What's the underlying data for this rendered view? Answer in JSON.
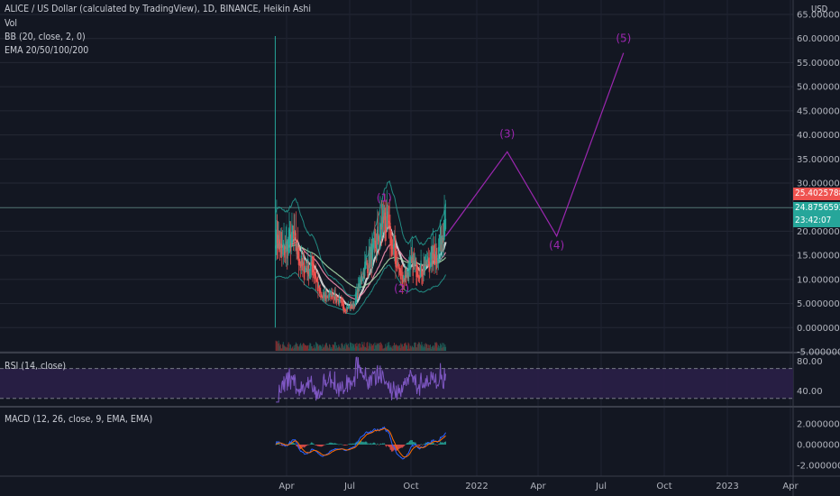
{
  "header": {
    "title": "ALICE / US Dollar (calculated by TradingView), 1D, BINANCE, Heikin Ashi",
    "vol": "Vol",
    "bb": "BB (20, close, 2, 0)",
    "ema": "EMA 20/50/100/200"
  },
  "currency": "USD",
  "price_tags": {
    "last": "25.4025788",
    "current": "24.8756592",
    "countdown": "23:42:07"
  },
  "rsi": {
    "label": "RSI (14, close)",
    "ticks": [
      "80.00",
      "40.00"
    ]
  },
  "macd": {
    "label": "MACD (12, 26, close, 9, EMA, EMA)",
    "ticks": [
      "2.0000000",
      "0.0000000",
      "-2.0000000"
    ]
  },
  "colors": {
    "bg": "#131722",
    "wave": "#9c27b0",
    "up": "#26a69a",
    "down": "#ef5350",
    "rsi": "#7e57c2"
  },
  "chart_data": {
    "type": "candlestick",
    "title": "ALICE / US Dollar (calculated by TradingView), 1D, BINANCE, Heikin Ashi",
    "x_tick_labels": [
      "Apr",
      "Jul",
      "Oct",
      "2022",
      "Apr",
      "Jul",
      "Oct",
      "2023",
      "Apr"
    ],
    "y_tick_labels": [
      "65.0000000",
      "60.0000000",
      "55.0000000",
      "50.0000000",
      "45.0000000",
      "40.0000000",
      "35.0000000",
      "30.0000000",
      "25.0000000",
      "20.0000000",
      "15.0000000",
      "10.0000000",
      "5.0000000",
      "0.0000000",
      "-5.0000000"
    ],
    "ylim": [
      -5,
      65
    ],
    "price_path": [
      {
        "date": "2021-03-15",
        "price": 60.5
      },
      {
        "date": "2021-03-16",
        "price": 20
      },
      {
        "date": "2021-03-25",
        "price": 15
      },
      {
        "date": "2021-04-10",
        "price": 19
      },
      {
        "date": "2021-04-25",
        "price": 12
      },
      {
        "date": "2021-05-10",
        "price": 13
      },
      {
        "date": "2021-05-22",
        "price": 6
      },
      {
        "date": "2021-06-10",
        "price": 7
      },
      {
        "date": "2021-06-25",
        "price": 4
      },
      {
        "date": "2021-07-10",
        "price": 4.5
      },
      {
        "date": "2021-07-25",
        "price": 12
      },
      {
        "date": "2021-08-10",
        "price": 16
      },
      {
        "date": "2021-08-25",
        "price": 23.5
      },
      {
        "date": "2021-09-05",
        "price": 17
      },
      {
        "date": "2021-09-20",
        "price": 10
      },
      {
        "date": "2021-10-05",
        "price": 13
      },
      {
        "date": "2021-10-20",
        "price": 12
      },
      {
        "date": "2021-11-01",
        "price": 14
      },
      {
        "date": "2021-11-15",
        "price": 16
      },
      {
        "date": "2021-11-25",
        "price": 24.88
      }
    ],
    "wave_count": [
      {
        "label": "(1)",
        "date": "2021-08-25",
        "price": 23.5
      },
      {
        "label": "(2)",
        "date": "2021-09-20",
        "price": 10
      },
      {
        "label": "(3)",
        "date": "2022-02-25",
        "price": 36.5
      },
      {
        "label": "(4)",
        "date": "2022-05-10",
        "price": 19
      },
      {
        "label": "(5)",
        "date": "2022-08-18",
        "price": 57
      }
    ],
    "wave_projection": [
      {
        "date": "2021-11-25",
        "price": 19
      },
      {
        "date": "2022-02-25",
        "price": 36.5
      },
      {
        "date": "2022-05-10",
        "price": 19
      },
      {
        "date": "2022-08-18",
        "price": 57
      }
    ],
    "last_price": 25.4025788,
    "current_price": 24.8756592,
    "rsi_levels": [
      70,
      30
    ],
    "rsi_ylim": [
      20,
      90
    ]
  }
}
